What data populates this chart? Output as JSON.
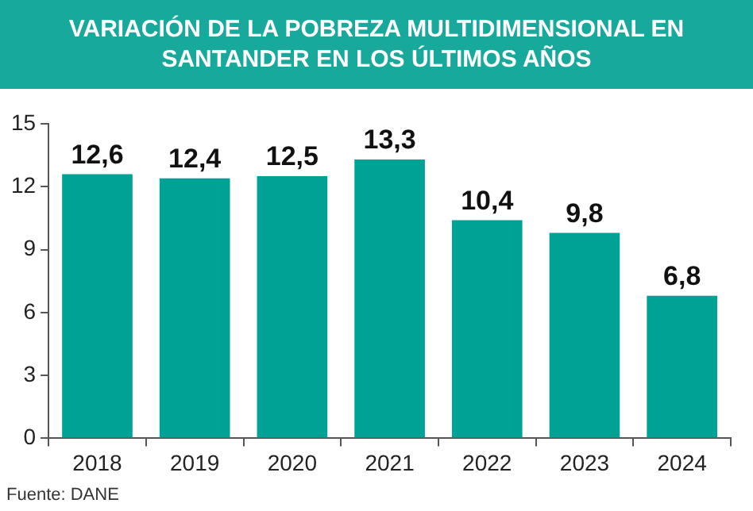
{
  "chart_data": {
    "type": "bar",
    "title": "VARIACIÓN DE LA POBREZA MULTIDIMENSIONAL EN SANTANDER EN LOS ÚLTIMOS  AÑOS",
    "categories": [
      "2018",
      "2019",
      "2020",
      "2021",
      "2022",
      "2023",
      "2024"
    ],
    "values": [
      12.6,
      12.4,
      12.5,
      13.3,
      10.4,
      9.8,
      6.8
    ],
    "value_labels": [
      "12,6",
      "12,4",
      "12,5",
      "13,3",
      "10,4",
      "9,8",
      "6,8"
    ],
    "color": "#00a296",
    "ylim": [
      0,
      15
    ],
    "yticks": [
      0,
      3,
      6,
      9,
      12,
      15
    ],
    "grid": false,
    "legend": false,
    "annotations": [
      "Fuente: DANE"
    ]
  }
}
